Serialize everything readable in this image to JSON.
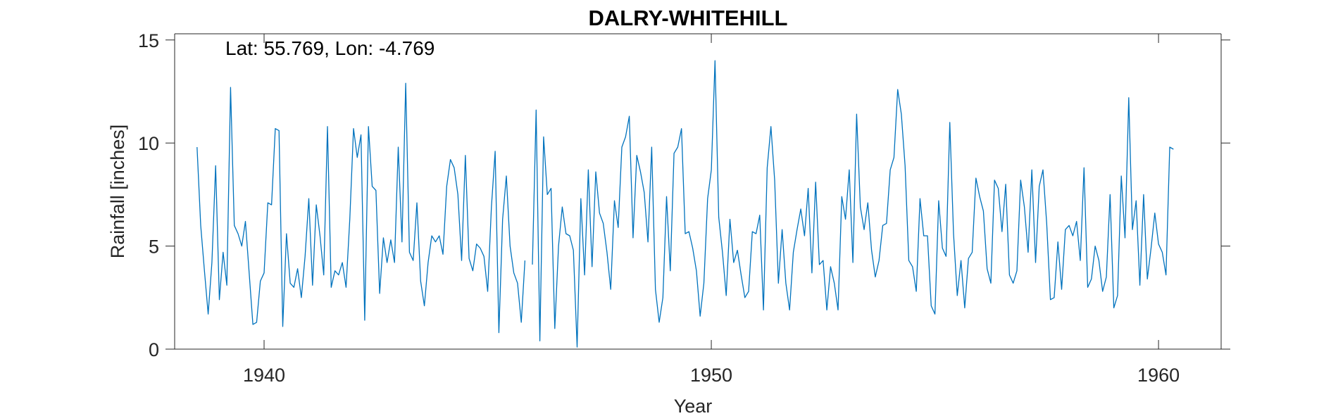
{
  "chart_data": {
    "type": "line",
    "title": "DALRY-WHITEHILL",
    "annotation": "Lat: 55.769, Lon: -4.769",
    "xlabel": "Year",
    "ylabel": "Rainfall [inches]",
    "xlim": [
      1938.0,
      1961.4
    ],
    "ylim": [
      0,
      15.3
    ],
    "xticks": [
      1940,
      1950,
      1960
    ],
    "yticks": [
      0,
      5,
      10,
      15
    ],
    "grid": false,
    "box": true,
    "series": [
      {
        "color": "#0072BD",
        "x_start": 1938.5,
        "x_step": 0.0833333,
        "note_gaps": "null values are missing months",
        "values": [
          9.8,
          6.0,
          3.8,
          1.7,
          4.2,
          8.9,
          2.4,
          4.7,
          3.1,
          12.7,
          6.0,
          5.6,
          5.0,
          6.2,
          3.7,
          1.2,
          1.3,
          3.3,
          3.7,
          7.1,
          7.0,
          10.7,
          10.6,
          1.1,
          5.6,
          3.2,
          3.0,
          3.9,
          2.5,
          4.5,
          7.3,
          3.1,
          7.0,
          5.5,
          3.6,
          10.8,
          3.0,
          3.8,
          3.6,
          4.2,
          3.0,
          6.3,
          10.7,
          9.3,
          10.4,
          1.4,
          10.8,
          7.9,
          7.7,
          2.7,
          5.4,
          4.2,
          5.3,
          4.2,
          9.8,
          5.2,
          12.9,
          4.7,
          4.3,
          7.1,
          3.3,
          2.1,
          4.2,
          5.5,
          5.2,
          5.5,
          4.6,
          7.9,
          9.2,
          8.8,
          7.5,
          4.3,
          9.4,
          4.4,
          3.8,
          5.1,
          4.9,
          4.5,
          2.8,
          6.9,
          9.6,
          0.8,
          6.3,
          8.4,
          5.0,
          3.7,
          3.2,
          1.3,
          4.3,
          null,
          4.1,
          11.6,
          0.4,
          10.3,
          7.5,
          7.8,
          1.0,
          5.0,
          6.9,
          5.6,
          5.5,
          4.8,
          0.1,
          7.3,
          3.6,
          8.7,
          4.0,
          8.6,
          6.6,
          6.1,
          4.7,
          2.9,
          7.2,
          5.9,
          9.8,
          10.3,
          11.3,
          5.4,
          9.4,
          8.6,
          7.6,
          5.2,
          9.8,
          2.9,
          1.3,
          2.5,
          7.4,
          3.8,
          9.5,
          9.8,
          10.7,
          5.6,
          5.7,
          4.9,
          3.8,
          1.6,
          3.2,
          7.3,
          8.7,
          14.0,
          6.4,
          4.7,
          2.6,
          6.3,
          4.2,
          4.8,
          3.6,
          2.5,
          2.8,
          5.7,
          5.6,
          6.5,
          1.9,
          8.8,
          10.8,
          8.2,
          3.2,
          5.8,
          3.2,
          1.9,
          4.7,
          5.8,
          6.8,
          5.5,
          7.8,
          3.7,
          8.1,
          4.1,
          4.3,
          1.9,
          4.0,
          3.2,
          1.9,
          7.4,
          6.3,
          8.7,
          4.2,
          11.4,
          6.9,
          5.8,
          7.1,
          4.8,
          3.5,
          4.3,
          6.0,
          6.1,
          8.7,
          9.3,
          12.6,
          11.4,
          8.9,
          4.3,
          4.0,
          2.8,
          7.3,
          5.5,
          5.5,
          2.1,
          1.7,
          7.2,
          4.9,
          4.5,
          11.0,
          5.6,
          2.6,
          4.3,
          2.0,
          4.4,
          4.7,
          8.3,
          7.4,
          6.7,
          3.9,
          3.2,
          8.2,
          7.8,
          5.7,
          8.0,
          3.6,
          3.2,
          3.8,
          8.2,
          6.9,
          4.7,
          8.7,
          4.2,
          7.9,
          8.7,
          6.1,
          2.4,
          2.5,
          5.2,
          2.9,
          5.8,
          6.0,
          5.5,
          6.2,
          4.3,
          8.8,
          3.0,
          3.4,
          5.0,
          4.3,
          2.8,
          3.5,
          7.5,
          2.0,
          2.6,
          8.4,
          5.4,
          12.2,
          5.8,
          7.2,
          3.1,
          7.5,
          3.4,
          4.9,
          6.6,
          5.1,
          4.7,
          3.6,
          9.8,
          9.7
        ]
      }
    ]
  }
}
